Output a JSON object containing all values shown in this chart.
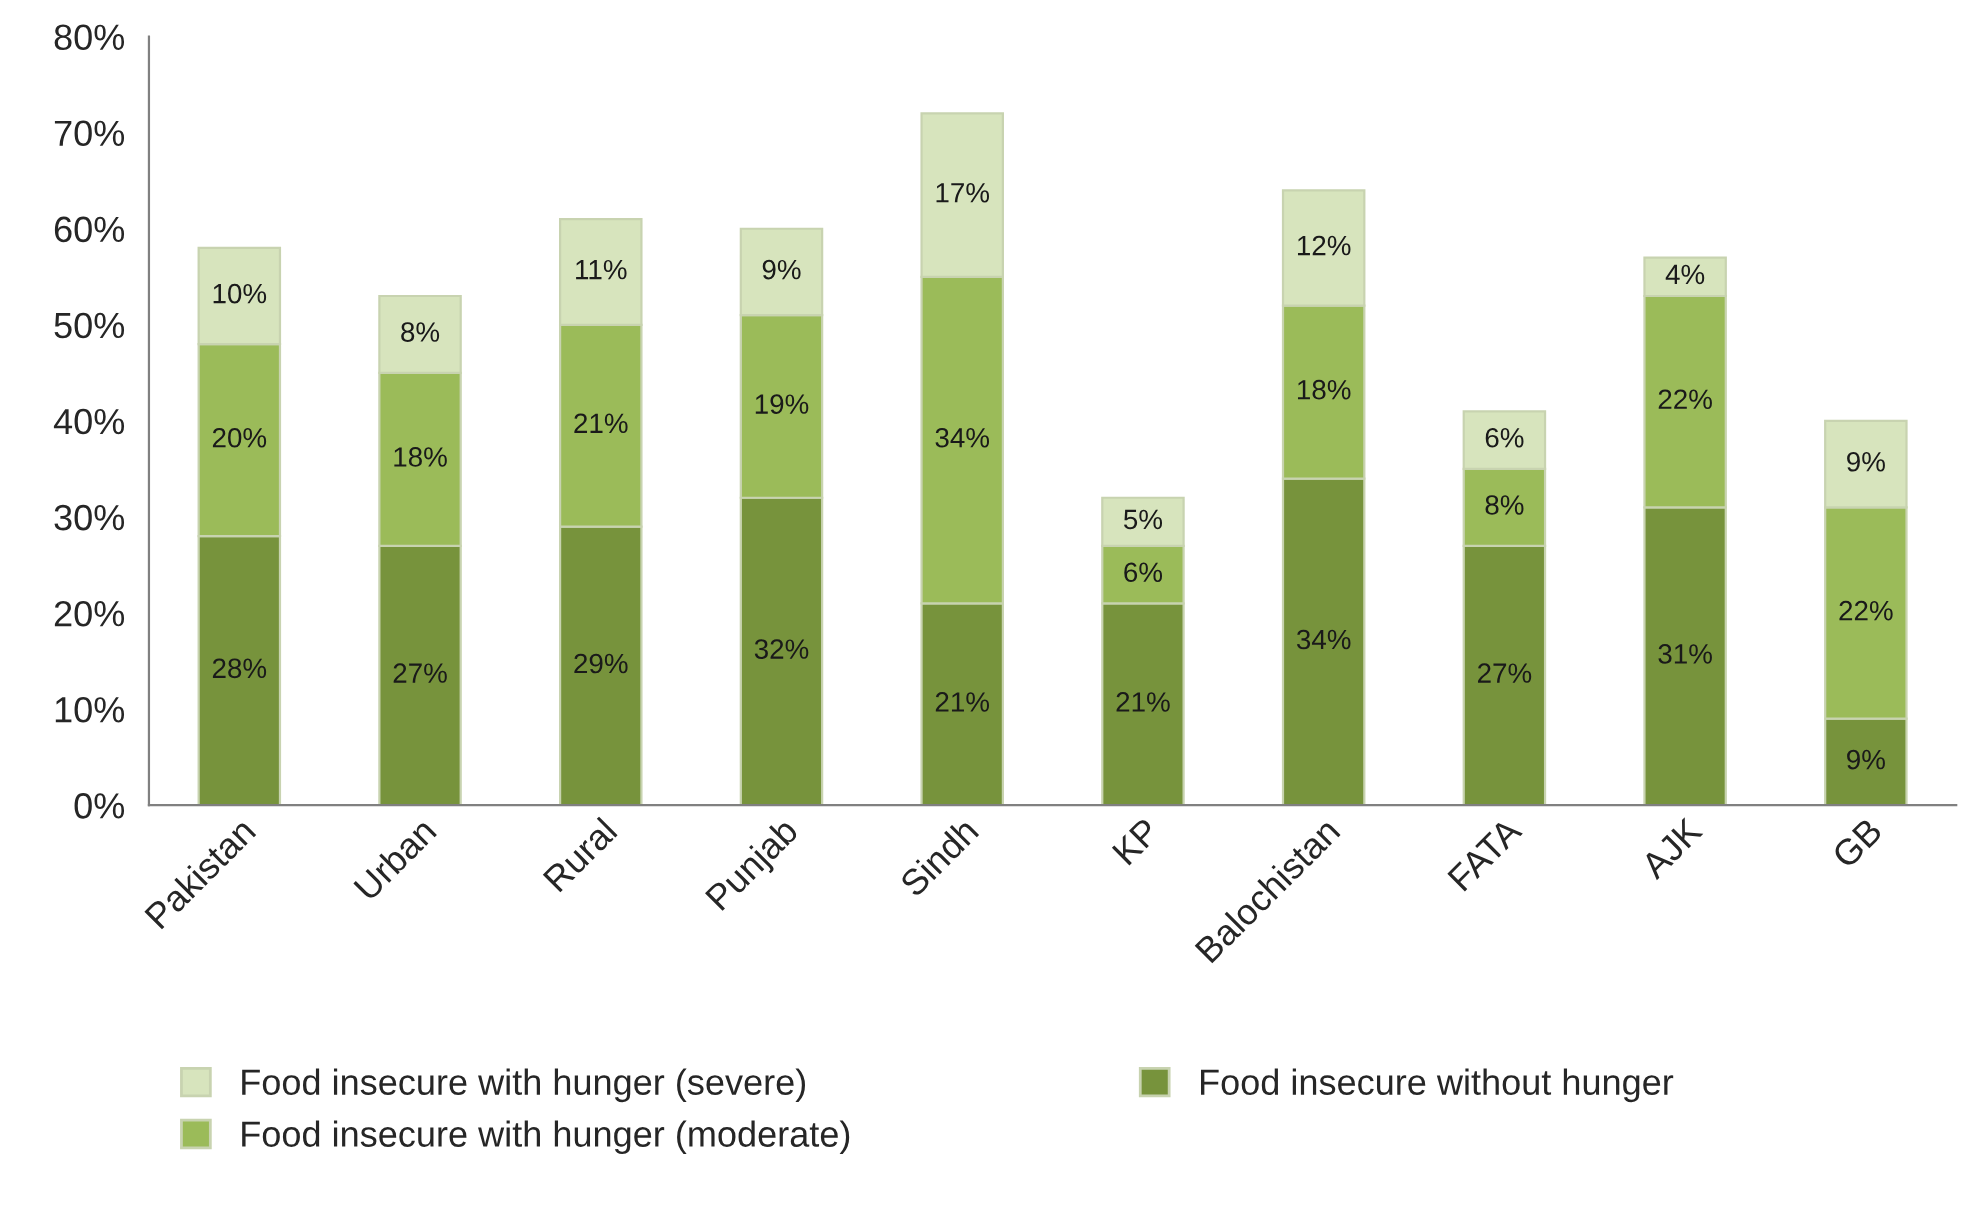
{
  "chart_data": {
    "type": "bar",
    "stacked": true,
    "categories": [
      "Pakistan",
      "Urban",
      "Rural",
      "Punjab",
      "Sindh",
      "KP",
      "Balochistan",
      "FATA",
      "AJK",
      "GB"
    ],
    "series": [
      {
        "name": "Food insecure without hunger",
        "color": "#77933c",
        "values": [
          28,
          27,
          29,
          32,
          21,
          21,
          34,
          27,
          31,
          9
        ],
        "value_labels": [
          "28%",
          "27%",
          "29%",
          "32%",
          "21%",
          "21%",
          "34%",
          "27%",
          "31%",
          "9%"
        ]
      },
      {
        "name": "Food insecure with hunger (moderate)",
        "color": "#9bbb59",
        "values": [
          20,
          18,
          21,
          19,
          34,
          6,
          18,
          8,
          22,
          22
        ],
        "value_labels": [
          "20%",
          "18%",
          "21%",
          "19%",
          "34%",
          "6%",
          "18%",
          "8%",
          "22%",
          "22%"
        ]
      },
      {
        "name": "Food insecure with hunger (severe)",
        "color": "#d7e4bd",
        "values": [
          10,
          8,
          11,
          9,
          17,
          5,
          12,
          6,
          4,
          9
        ],
        "value_labels": [
          "10%",
          "8%",
          "11%",
          "9%",
          "17%",
          "5%",
          "12%",
          "6%",
          "4%",
          "9%"
        ]
      }
    ],
    "ylim": [
      0,
      80
    ],
    "yticks": [
      {
        "value": 0,
        "label": "0%"
      },
      {
        "value": 10,
        "label": "10%"
      },
      {
        "value": 20,
        "label": "20%"
      },
      {
        "value": 30,
        "label": "30%"
      },
      {
        "value": 40,
        "label": "40%"
      },
      {
        "value": 50,
        "label": "50%"
      },
      {
        "value": 60,
        "label": "60%"
      },
      {
        "value": 70,
        "label": "70%"
      },
      {
        "value": 80,
        "label": "80%"
      }
    ],
    "grid": false,
    "legend": "bottom"
  }
}
